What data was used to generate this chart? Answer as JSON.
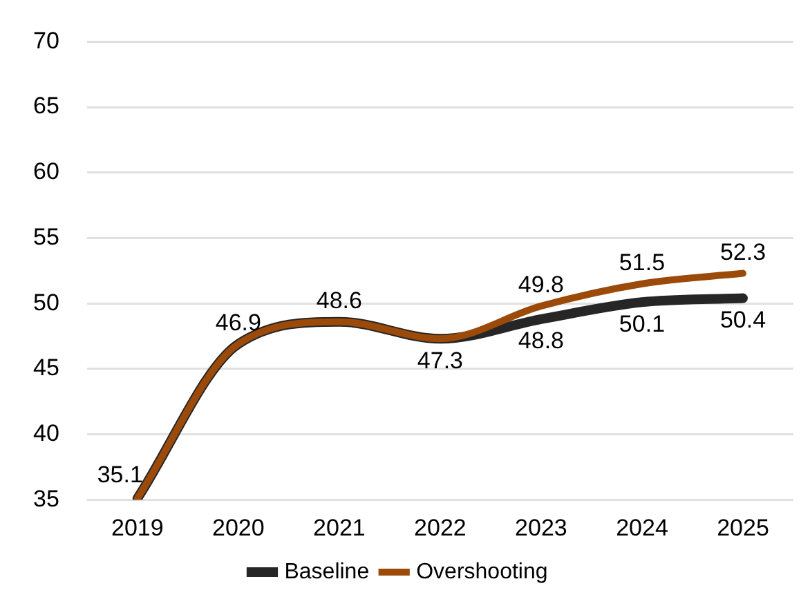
{
  "chart_data": {
    "type": "line",
    "categories": [
      "2019",
      "2020",
      "2021",
      "2022",
      "2023",
      "2024",
      "2025"
    ],
    "series": [
      {
        "name": "Baseline",
        "color": "#262626",
        "values": [
          35.1,
          46.9,
          48.6,
          47.3,
          48.8,
          50.1,
          50.4
        ],
        "value_labels": [
          null,
          null,
          null,
          "47.3",
          "48.8",
          "50.1",
          "50.4"
        ]
      },
      {
        "name": "Overshooting",
        "color": "#9c4a0a",
        "values": [
          35.1,
          46.9,
          48.6,
          47.3,
          49.8,
          51.5,
          52.3
        ],
        "value_labels": [
          "35.1",
          "46.9",
          "48.6",
          null,
          "49.8",
          "51.5",
          "52.3"
        ]
      }
    ],
    "ylim": [
      35,
      70
    ],
    "yticks": [
      35,
      40,
      45,
      50,
      55,
      60,
      65,
      70
    ],
    "grid": "y",
    "legend": "bottom",
    "marker": "none",
    "line_style": "solid"
  }
}
